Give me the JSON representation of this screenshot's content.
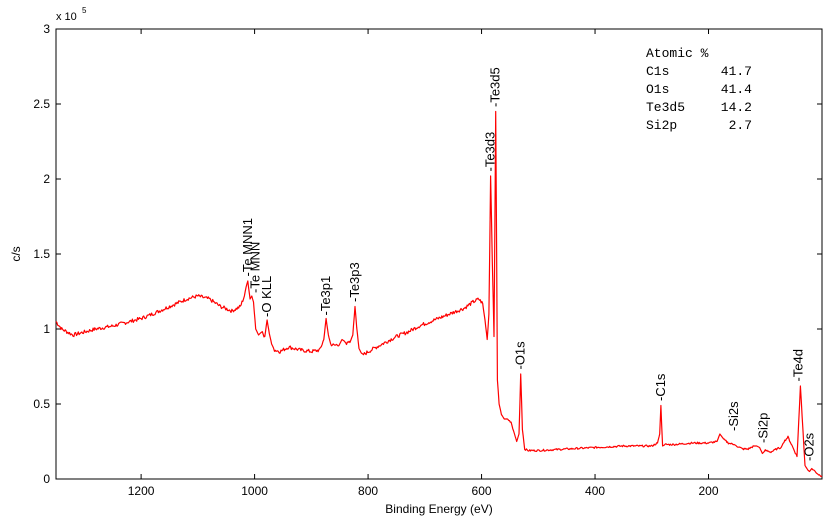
{
  "chart_data": {
    "type": "line",
    "xlabel": "Binding Energy (eV)",
    "ylabel": "c/s",
    "y_multiplier_label": "x 10",
    "y_multiplier_exponent": "5",
    "xlim": [
      1350,
      0
    ],
    "x_reversed": true,
    "ylim": [
      0,
      3
    ],
    "x_ticks": [
      1200,
      1000,
      800,
      600,
      400,
      200
    ],
    "x_tick_labels": [
      "1200",
      "1000",
      "800",
      "600",
      "400",
      "200"
    ],
    "y_ticks": [
      0,
      0.5,
      1,
      1.5,
      2,
      2.5,
      3
    ],
    "y_tick_labels": [
      "0",
      "0.5",
      "1",
      "1.5",
      "2",
      "2.5",
      "3"
    ],
    "grid": false,
    "line_color": "#ff0000",
    "series": [
      {
        "x": [
          1350,
          1340,
          1320,
          1300,
          1280,
          1250,
          1220,
          1200,
          1180,
          1150,
          1120,
          1100,
          1080,
          1060,
          1040,
          1025,
          1018,
          1015,
          1012,
          1008,
          1005,
          1002,
          998,
          993,
          988,
          982,
          978,
          974,
          970,
          965,
          955,
          940,
          920,
          900,
          885,
          878,
          874,
          870,
          866,
          860,
          850,
          846,
          842,
          838,
          832,
          827,
          823,
          820,
          816,
          812,
          808,
          790,
          770,
          750,
          730,
          710,
          690,
          670,
          650,
          630,
          615,
          605,
          598,
          594,
          590,
          587,
          584,
          581,
          578,
          575,
          572,
          569,
          565,
          560,
          555,
          548,
          542,
          538,
          534,
          531,
          528,
          524,
          518,
          500,
          450,
          400,
          350,
          300,
          290,
          286,
          284,
          281,
          276,
          260,
          230,
          200,
          185,
          180,
          176,
          172,
          165,
          155,
          150,
          140,
          130,
          120,
          115,
          110,
          105,
          100,
          90,
          80,
          72,
          67,
          60,
          50,
          44,
          41,
          38,
          35,
          30,
          25,
          22,
          18,
          12,
          6,
          0
        ],
        "y": [
          1.05,
          1.0,
          0.96,
          0.98,
          1.0,
          1.02,
          1.05,
          1.07,
          1.1,
          1.15,
          1.2,
          1.22,
          1.2,
          1.15,
          1.12,
          1.15,
          1.22,
          1.28,
          1.32,
          1.2,
          1.22,
          1.18,
          1.0,
          0.96,
          0.98,
          0.95,
          1.06,
          0.97,
          0.9,
          0.86,
          0.85,
          0.88,
          0.86,
          0.85,
          0.86,
          0.93,
          1.07,
          0.96,
          0.9,
          0.89,
          0.9,
          0.93,
          0.92,
          0.9,
          0.91,
          0.96,
          1.15,
          1.01,
          0.87,
          0.84,
          0.83,
          0.87,
          0.91,
          0.95,
          0.98,
          1.02,
          1.05,
          1.08,
          1.11,
          1.14,
          1.18,
          1.2,
          1.17,
          1.06,
          0.93,
          1.1,
          2.02,
          1.45,
          0.95,
          2.45,
          0.66,
          0.5,
          0.43,
          0.4,
          0.4,
          0.38,
          0.3,
          0.25,
          0.3,
          0.7,
          0.33,
          0.2,
          0.19,
          0.19,
          0.2,
          0.21,
          0.22,
          0.22,
          0.24,
          0.3,
          0.49,
          0.22,
          0.23,
          0.23,
          0.24,
          0.24,
          0.25,
          0.3,
          0.28,
          0.26,
          0.24,
          0.23,
          0.22,
          0.2,
          0.2,
          0.22,
          0.22,
          0.21,
          0.17,
          0.19,
          0.18,
          0.2,
          0.21,
          0.25,
          0.28,
          0.2,
          0.15,
          0.38,
          0.62,
          0.42,
          0.09,
          0.06,
          0.05,
          0.07,
          0.05,
          0.03,
          0.02
        ]
      }
    ],
    "annotations": [
      {
        "label": "-Te MNN1",
        "x": 1012,
        "y": 1.33
      },
      {
        "label": "-Te MNN",
        "x": 998,
        "y": 1.22
      },
      {
        "label": "-O KLL",
        "x": 978,
        "y": 1.06
      },
      {
        "label": "-Te3p1",
        "x": 874,
        "y": 1.07
      },
      {
        "label": "-Te3p3",
        "x": 823,
        "y": 1.16
      },
      {
        "label": "-Te3d3",
        "x": 584,
        "y": 2.03
      },
      {
        "label": "-Te3d5",
        "x": 575,
        "y": 2.46
      },
      {
        "label": "-O1s",
        "x": 531,
        "y": 0.71
      },
      {
        "label": "-C1s",
        "x": 284,
        "y": 0.5
      },
      {
        "label": "-Si2s",
        "x": 155,
        "y": 0.3
      },
      {
        "label": "-Si2p",
        "x": 103,
        "y": 0.22
      },
      {
        "label": "-Te4d",
        "x": 41,
        "y": 0.63
      },
      {
        "label": "-O2s",
        "x": 22,
        "y": 0.1
      }
    ],
    "atomic_table": {
      "title": "Atomic %",
      "rows": [
        {
          "element": "C1s",
          "value": "41.7"
        },
        {
          "element": "O1s",
          "value": "41.4"
        },
        {
          "element": "Te3d5",
          "value": "14.2"
        },
        {
          "element": "Si2p",
          "value": "2.7"
        }
      ]
    }
  }
}
